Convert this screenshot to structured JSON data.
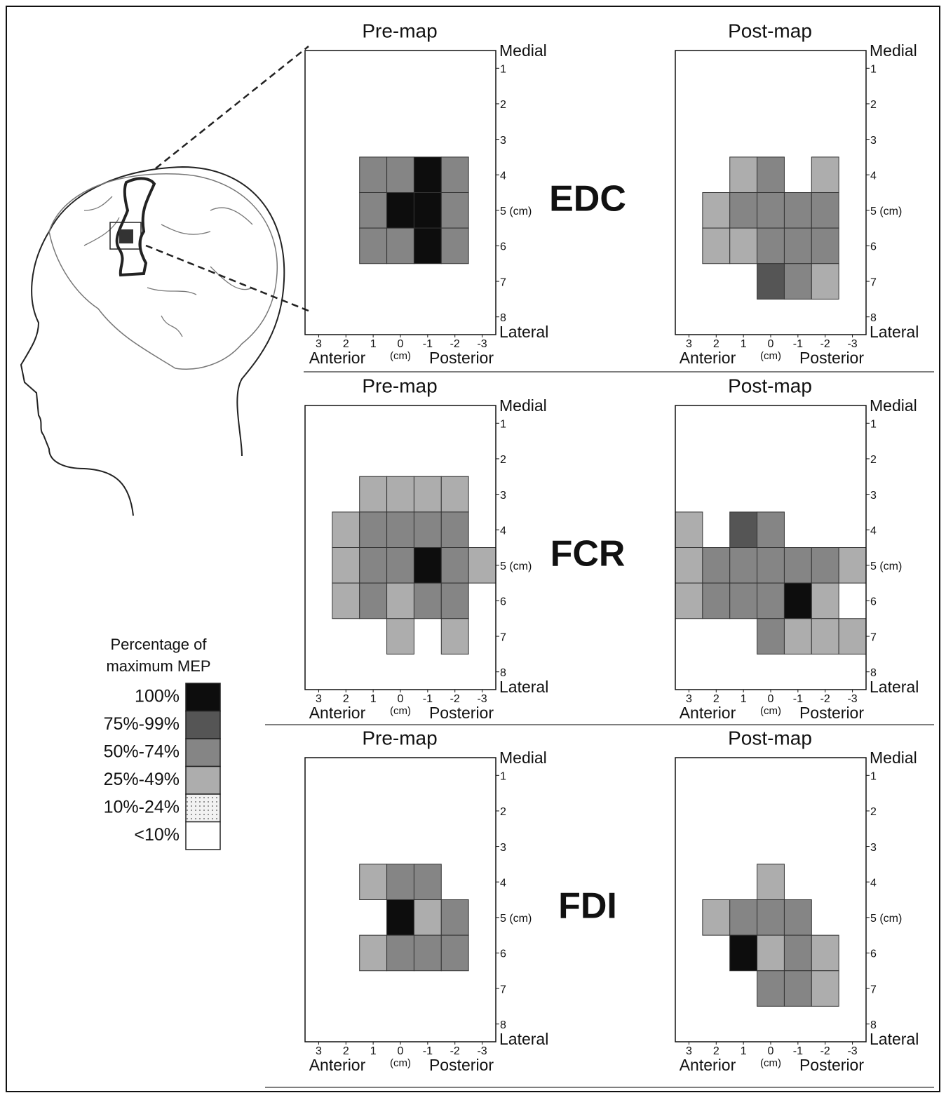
{
  "legend": {
    "title": [
      "Percentage of",
      "maximum MEP"
    ],
    "levels": [
      {
        "label": "100%",
        "min": 100,
        "max": 100,
        "color": "#0d0d0d"
      },
      {
        "label": "75%-99%",
        "min": 75,
        "max": 99,
        "color": "#555555"
      },
      {
        "label": "50%-74%",
        "min": 50,
        "max": 74,
        "color": "#858585"
      },
      {
        "label": "25%-49%",
        "min": 25,
        "max": 49,
        "color": "#adadad"
      },
      {
        "label": "10%-24%",
        "min": 10,
        "max": 24,
        "color": "#e6e6e6",
        "pattern": "dots"
      },
      {
        "label": "<10%",
        "min": 0,
        "max": 9,
        "color": "#ffffff"
      }
    ]
  },
  "chart_data": [
    {
      "type": "heatmap",
      "title": "Pre-map",
      "label": "EDC",
      "xlim": [
        3.5,
        -3.5
      ],
      "ylim": [
        0.5,
        8.5
      ],
      "xticks": [
        3,
        2,
        1,
        0,
        -1,
        -2,
        -3
      ],
      "yticks": [
        1,
        2,
        3,
        4,
        {
          "value": 5,
          "label": "5 (cm)"
        },
        6,
        7,
        8
      ],
      "xunit": "(cm)",
      "ytop": "Medial",
      "ybottom": "Lateral",
      "xleft": "Anterior",
      "xright": "Posterior",
      "cells": {
        "x": [
          1,
          0,
          -1,
          -2,
          1,
          0,
          -1,
          -2,
          1,
          0,
          -1,
          -2
        ],
        "y": [
          4,
          4,
          4,
          4,
          5,
          5,
          5,
          5,
          6,
          6,
          6,
          6
        ],
        "values": [
          62,
          62,
          100,
          62,
          62,
          100,
          100,
          62,
          62,
          62,
          100,
          62
        ]
      }
    },
    {
      "type": "heatmap",
      "title": "Post-map",
      "xlim": [
        3.5,
        -3.5
      ],
      "ylim": [
        0.5,
        8.5
      ],
      "xticks": [
        3,
        2,
        1,
        0,
        -1,
        -2,
        -3
      ],
      "yticks": [
        1,
        2,
        3,
        4,
        {
          "value": 5,
          "label": "5 (cm)"
        },
        6,
        7,
        8
      ],
      "xunit": "(cm)",
      "ytop": "Medial",
      "ybottom": "Lateral",
      "xleft": "Anterior",
      "xright": "Posterior",
      "cells": {
        "x": [
          1,
          0,
          -2,
          2,
          1,
          0,
          -1,
          -2,
          2,
          1,
          0,
          -1,
          -2,
          0,
          -1,
          -2
        ],
        "y": [
          4,
          4,
          4,
          5,
          5,
          5,
          5,
          5,
          6,
          6,
          6,
          6,
          6,
          7,
          7,
          7
        ],
        "values": [
          37,
          62,
          37,
          37,
          62,
          62,
          62,
          62,
          37,
          37,
          62,
          62,
          62,
          87,
          62,
          37
        ]
      }
    },
    {
      "type": "heatmap",
      "title": "Pre-map",
      "label": "FCR",
      "xlim": [
        3.5,
        -3.5
      ],
      "ylim": [
        0.5,
        8.5
      ],
      "xticks": [
        3,
        2,
        1,
        0,
        -1,
        -2,
        -3
      ],
      "yticks": [
        1,
        2,
        3,
        4,
        {
          "value": 5,
          "label": "5 (cm)"
        },
        6,
        7,
        8
      ],
      "xunit": "(cm)",
      "ytop": "Medial",
      "ybottom": "Lateral",
      "xleft": "Anterior",
      "xright": "Posterior",
      "cells": {
        "x": [
          1,
          0,
          -1,
          -2,
          2,
          1,
          0,
          -1,
          -2,
          2,
          1,
          0,
          -1,
          -2,
          -3,
          2,
          1,
          0,
          -1,
          -2,
          0,
          -2
        ],
        "y": [
          3,
          3,
          3,
          3,
          4,
          4,
          4,
          4,
          4,
          5,
          5,
          5,
          5,
          5,
          5,
          6,
          6,
          6,
          6,
          6,
          7,
          7
        ],
        "values": [
          37,
          37,
          37,
          37,
          37,
          62,
          62,
          62,
          62,
          37,
          62,
          62,
          100,
          62,
          37,
          37,
          62,
          37,
          62,
          62,
          37,
          37
        ]
      }
    },
    {
      "type": "heatmap",
      "title": "Post-map",
      "xlim": [
        3.5,
        -3.5
      ],
      "ylim": [
        0.5,
        8.5
      ],
      "xticks": [
        3,
        2,
        1,
        0,
        -1,
        -2,
        -3
      ],
      "yticks": [
        1,
        2,
        3,
        4,
        {
          "value": 5,
          "label": "5 (cm)"
        },
        6,
        7,
        8
      ],
      "xunit": "(cm)",
      "ytop": "Medial",
      "ybottom": "Lateral",
      "xleft": "Anterior",
      "xright": "Posterior",
      "cells": {
        "x": [
          3,
          1,
          0,
          3,
          2,
          1,
          0,
          -1,
          -2,
          -3,
          3,
          2,
          1,
          0,
          -1,
          -2,
          0,
          -1,
          -2,
          -3
        ],
        "y": [
          4,
          4,
          4,
          5,
          5,
          5,
          5,
          5,
          5,
          5,
          6,
          6,
          6,
          6,
          6,
          6,
          7,
          7,
          7,
          7
        ],
        "values": [
          37,
          87,
          62,
          37,
          62,
          62,
          62,
          62,
          62,
          37,
          37,
          62,
          62,
          62,
          100,
          37,
          62,
          37,
          37,
          37
        ]
      }
    },
    {
      "type": "heatmap",
      "title": "Pre-map",
      "label": "FDI",
      "xlim": [
        3.5,
        -3.5
      ],
      "ylim": [
        0.5,
        8.5
      ],
      "xticks": [
        3,
        2,
        1,
        0,
        -1,
        -2,
        -3
      ],
      "yticks": [
        1,
        2,
        3,
        4,
        {
          "value": 5,
          "label": "5 (cm)"
        },
        6,
        7,
        8
      ],
      "xunit": "(cm)",
      "ytop": "Medial",
      "ybottom": "Lateral",
      "xleft": "Anterior",
      "xright": "Posterior",
      "cells": {
        "x": [
          1,
          0,
          -1,
          0,
          -1,
          -2,
          1,
          0,
          -1,
          -2
        ],
        "y": [
          4,
          4,
          4,
          5,
          5,
          5,
          6,
          6,
          6,
          6
        ],
        "values": [
          37,
          62,
          62,
          100,
          37,
          62,
          37,
          62,
          62,
          62
        ]
      }
    },
    {
      "type": "heatmap",
      "title": "Post-map",
      "xlim": [
        3.5,
        -3.5
      ],
      "ylim": [
        0.5,
        8.5
      ],
      "xticks": [
        3,
        2,
        1,
        0,
        -1,
        -2,
        -3
      ],
      "yticks": [
        1,
        2,
        3,
        4,
        {
          "value": 5,
          "label": "5 (cm)"
        },
        6,
        7,
        8
      ],
      "xunit": "(cm)",
      "ytop": "Medial",
      "ybottom": "Lateral",
      "xleft": "Anterior",
      "xright": "Posterior",
      "cells": {
        "x": [
          0,
          2,
          1,
          0,
          -1,
          1,
          0,
          -1,
          -2,
          0,
          -1,
          -2
        ],
        "y": [
          4,
          5,
          5,
          5,
          5,
          6,
          6,
          6,
          6,
          7,
          7,
          7
        ],
        "values": [
          37,
          37,
          62,
          62,
          62,
          100,
          37,
          62,
          37,
          62,
          62,
          37
        ]
      }
    }
  ]
}
